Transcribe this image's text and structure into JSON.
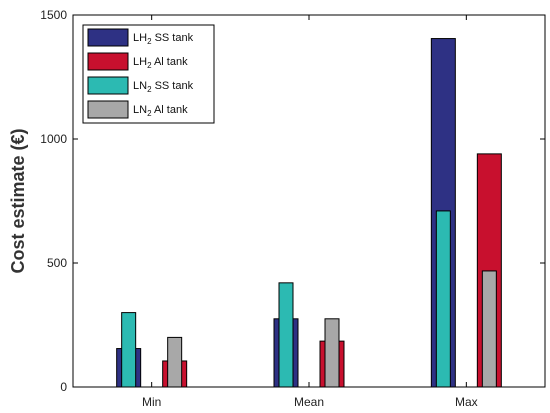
{
  "chart_data": {
    "type": "bar",
    "categories": [
      "Min",
      "Mean",
      "Max"
    ],
    "ylabel": "Cost estimate (€)",
    "xlabel": "",
    "ylim": [
      0,
      1500
    ],
    "yticks": [
      0,
      500,
      1000,
      1500
    ],
    "grid": false,
    "legend_position": "top-left",
    "series": [
      {
        "legend": {
          "pre": "LH",
          "sub": "2",
          "post": " SS tank"
        },
        "color": "#2e3184",
        "values": [
          155,
          275,
          1405
        ],
        "bar": "wide",
        "group": "left"
      },
      {
        "legend": {
          "pre": "LH",
          "sub": "2",
          "post": " Al tank"
        },
        "color": "#c8102e",
        "values": [
          105,
          185,
          940
        ],
        "bar": "wide",
        "group": "right"
      },
      {
        "legend": {
          "pre": "LN",
          "sub": "2",
          "post": " SS tank"
        },
        "color": "#2cbab2",
        "values": [
          300,
          420,
          710
        ],
        "bar": "narrow",
        "group": "left"
      },
      {
        "legend": {
          "pre": "LN",
          "sub": "2",
          "post": " Al tank"
        },
        "color": "#a8a8a8",
        "values": [
          200,
          275,
          468
        ],
        "bar": "narrow",
        "group": "right"
      }
    ]
  }
}
